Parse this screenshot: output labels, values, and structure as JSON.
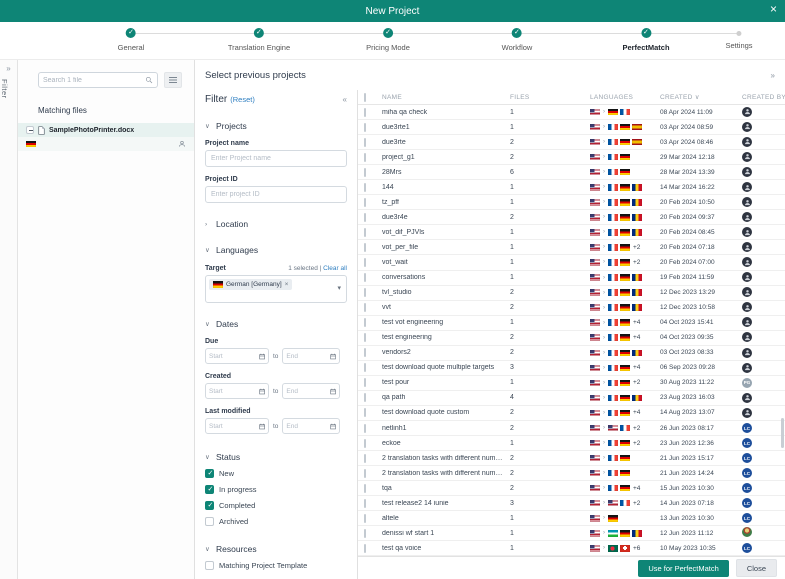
{
  "dialog": {
    "title": "New Project",
    "close_icon": "×"
  },
  "stepper": {
    "steps": [
      {
        "label": "General",
        "state": "done"
      },
      {
        "label": "Translation Engine",
        "state": "done"
      },
      {
        "label": "Pricing Mode",
        "state": "done"
      },
      {
        "label": "Workflow",
        "state": "done"
      },
      {
        "label": "PerfectMatch",
        "state": "current"
      },
      {
        "label": "Settings",
        "state": "upcoming"
      }
    ]
  },
  "filter_rail": {
    "collapse_icon": "»",
    "label": "Filter"
  },
  "files_panel": {
    "search_placeholder": "Search 1 file",
    "heading": "Matching files",
    "file": {
      "name": "SamplePhotoPrinter.docx",
      "language_flag": "de"
    }
  },
  "main": {
    "heading": "Select previous projects",
    "collapse_icon": "»"
  },
  "filter_panel": {
    "title": "Filter",
    "reset_label": "(Reset)",
    "collapse_icon": "«",
    "projects_section": "Projects",
    "project_name_label": "Project name",
    "project_name_placeholder": "Enter Project name",
    "project_id_label": "Project ID",
    "project_id_placeholder": "Enter project ID",
    "location_section": "Location",
    "languages_section": "Languages",
    "target_label": "Target",
    "selected_info": "1 selected",
    "divider": "|",
    "clear_all_label": "Clear all",
    "target_tag": {
      "label": "German [Germany]",
      "flag": "de",
      "remove_icon": "×"
    },
    "dates_section": "Dates",
    "date_fields": [
      "Due",
      "Created",
      "Last modified"
    ],
    "start_placeholder": "Start",
    "end_placeholder": "End",
    "to_label": "to",
    "status_section": "Status",
    "status_options": [
      {
        "label": "New",
        "checked": true
      },
      {
        "label": "In progress",
        "checked": true
      },
      {
        "label": "Completed",
        "checked": true
      },
      {
        "label": "Archived",
        "checked": false
      }
    ],
    "resources_section": "Resources",
    "resources_options": [
      {
        "label": "Matching Project Template",
        "checked": false
      }
    ]
  },
  "table": {
    "columns": [
      "NAME",
      "FILES",
      "LANGUAGES",
      "CREATED",
      "CREATED BY"
    ],
    "sorted_column": "CREATED",
    "sort_indicator": "∨",
    "rows": [
      {
        "name": "miha qa check",
        "files": "1",
        "source": "us",
        "targets": [
          "de",
          "fr"
        ],
        "extra": "",
        "created": "08 Apr 2024 11:09",
        "avatar": {
          "kind": "photo"
        }
      },
      {
        "name": "due3rte1",
        "files": "1",
        "source": "us",
        "targets": [
          "fr",
          "de",
          "es"
        ],
        "extra": "",
        "created": "03 Apr 2024 08:59",
        "avatar": {
          "kind": "photo"
        }
      },
      {
        "name": "due3rte",
        "files": "2",
        "source": "us",
        "targets": [
          "fr",
          "de",
          "es"
        ],
        "extra": "",
        "created": "03 Apr 2024 08:46",
        "avatar": {
          "kind": "photo"
        }
      },
      {
        "name": "project_g1",
        "files": "2",
        "source": "us",
        "targets": [
          "fr",
          "de"
        ],
        "extra": "",
        "created": "29 Mar 2024 12:18",
        "avatar": {
          "kind": "photo"
        }
      },
      {
        "name": "28Mrs",
        "files": "6",
        "source": "us",
        "targets": [
          "fr",
          "de"
        ],
        "extra": "",
        "created": "28 Mar 2024 13:39",
        "avatar": {
          "kind": "photo"
        }
      },
      {
        "name": "144",
        "files": "1",
        "source": "us",
        "targets": [
          "fr",
          "de",
          "ro"
        ],
        "extra": "",
        "created": "14 Mar 2024 16:22",
        "avatar": {
          "kind": "photo"
        }
      },
      {
        "name": "tz_pff",
        "files": "1",
        "source": "us",
        "targets": [
          "fr",
          "de",
          "ro"
        ],
        "extra": "",
        "created": "20 Feb 2024 10:50",
        "avatar": {
          "kind": "photo"
        }
      },
      {
        "name": "due3r4e",
        "files": "2",
        "source": "us",
        "targets": [
          "fr",
          "de",
          "ro"
        ],
        "extra": "",
        "created": "20 Feb 2024 09:37",
        "avatar": {
          "kind": "photo"
        }
      },
      {
        "name": "vot_dif_PJVls",
        "files": "1",
        "source": "us",
        "targets": [
          "fr",
          "de",
          "ro"
        ],
        "extra": "",
        "created": "20 Feb 2024 08:45",
        "avatar": {
          "kind": "photo"
        }
      },
      {
        "name": "vot_per_file",
        "files": "1",
        "source": "us",
        "targets": [
          "fr",
          "de"
        ],
        "extra": "+2",
        "created": "20 Feb 2024 07:18",
        "avatar": {
          "kind": "photo"
        }
      },
      {
        "name": "vot_wait",
        "files": "1",
        "source": "us",
        "targets": [
          "fr",
          "de"
        ],
        "extra": "+2",
        "created": "20 Feb 2024 07:00",
        "avatar": {
          "kind": "photo"
        }
      },
      {
        "name": "conversations",
        "files": "1",
        "source": "us",
        "targets": [
          "fr",
          "de",
          "ro"
        ],
        "extra": "",
        "created": "19 Feb 2024 11:59",
        "avatar": {
          "kind": "photo"
        }
      },
      {
        "name": "tvl_studio",
        "files": "2",
        "source": "us",
        "targets": [
          "fr",
          "de",
          "ro"
        ],
        "extra": "",
        "created": "12 Dec 2023 13:29",
        "avatar": {
          "kind": "photo"
        }
      },
      {
        "name": "vvt",
        "files": "2",
        "source": "us",
        "targets": [
          "fr",
          "de",
          "ro"
        ],
        "extra": "",
        "created": "12 Dec 2023 10:58",
        "avatar": {
          "kind": "photo"
        }
      },
      {
        "name": "test vot engineering",
        "files": "1",
        "source": "us",
        "targets": [
          "fr",
          "de"
        ],
        "extra": "+4",
        "created": "04 Oct 2023 15:41",
        "avatar": {
          "kind": "photo"
        }
      },
      {
        "name": "test engineering",
        "files": "2",
        "source": "us",
        "targets": [
          "fr",
          "de"
        ],
        "extra": "+4",
        "created": "04 Oct 2023 09:35",
        "avatar": {
          "kind": "photo"
        }
      },
      {
        "name": "vendors2",
        "files": "2",
        "source": "us",
        "targets": [
          "fr",
          "de",
          "ro"
        ],
        "extra": "",
        "created": "03 Oct 2023 08:33",
        "avatar": {
          "kind": "photo"
        }
      },
      {
        "name": "test download quote multiple targets",
        "files": "3",
        "source": "us",
        "targets": [
          "fr",
          "de"
        ],
        "extra": "+4",
        "created": "06 Sep 2023 09:28",
        "avatar": {
          "kind": "photo"
        }
      },
      {
        "name": "test pour",
        "files": "1",
        "source": "us",
        "targets": [
          "fr",
          "de"
        ],
        "extra": "+2",
        "created": "30 Aug 2023 11:22",
        "avatar": {
          "kind": "initials",
          "text": "PG",
          "color": "#97a5b1"
        }
      },
      {
        "name": "qa path",
        "files": "4",
        "source": "us",
        "targets": [
          "fr",
          "de",
          "ro"
        ],
        "extra": "",
        "created": "23 Aug 2023 16:03",
        "avatar": {
          "kind": "photo"
        }
      },
      {
        "name": "test download quote custom",
        "files": "2",
        "source": "us",
        "targets": [
          "fr",
          "de"
        ],
        "extra": "+4",
        "created": "14 Aug 2023 13:07",
        "avatar": {
          "kind": "photo"
        }
      },
      {
        "name": "netlinh1",
        "files": "2",
        "source": "us",
        "targets": [
          "us",
          "fr"
        ],
        "extra": "+2",
        "created": "26 Jun 2023 08:17",
        "avatar": {
          "kind": "initials",
          "text": "LC",
          "color": "#1d4e9b"
        }
      },
      {
        "name": "eckoe",
        "files": "1",
        "source": "us",
        "targets": [
          "fr",
          "de"
        ],
        "extra": "+2",
        "created": "23 Jun 2023 12:36",
        "avatar": {
          "kind": "initials",
          "text": "LC",
          "color": "#1d4e9b"
        }
      },
      {
        "name": "2 translation tasks with different number of outso...",
        "files": "2",
        "source": "us",
        "targets": [
          "fr",
          "de"
        ],
        "extra": "",
        "created": "21 Jun 2023 15:17",
        "avatar": {
          "kind": "initials",
          "text": "LC",
          "color": "#1d4e9b"
        }
      },
      {
        "name": "2 translation tasks with different number of outso...",
        "files": "2",
        "source": "us",
        "targets": [
          "fr",
          "de"
        ],
        "extra": "",
        "created": "21 Jun 2023 14:24",
        "avatar": {
          "kind": "initials",
          "text": "LC",
          "color": "#1d4e9b"
        }
      },
      {
        "name": "tqa",
        "files": "2",
        "source": "us",
        "targets": [
          "fr",
          "de"
        ],
        "extra": "+4",
        "created": "15 Jun 2023 10:30",
        "avatar": {
          "kind": "initials",
          "text": "LC",
          "color": "#1d4e9b"
        }
      },
      {
        "name": "test release2 14 iunie",
        "files": "3",
        "source": "us",
        "targets": [
          "us",
          "fr"
        ],
        "extra": "+2",
        "created": "14 Jun 2023 07:18",
        "avatar": {
          "kind": "initials",
          "text": "LC",
          "color": "#1d4e9b"
        }
      },
      {
        "name": "altele",
        "files": "1",
        "source": "us",
        "targets": [
          "de"
        ],
        "extra": "",
        "created": "13 Jun 2023 10:30",
        "avatar": {
          "kind": "initials",
          "text": "LC",
          "color": "#1d4e9b"
        }
      },
      {
        "name": "denissi wf start 1",
        "files": "1",
        "source": "us",
        "targets": [
          "uz",
          "de",
          "ro"
        ],
        "extra": "",
        "created": "12 Jun 2023 11:12",
        "avatar": {
          "kind": "photo",
          "tone": "color"
        }
      },
      {
        "name": "test qa voice",
        "files": "1",
        "source": "us",
        "targets": [
          "bd",
          "ch"
        ],
        "extra": "+6",
        "created": "10 May 2023 10:35",
        "avatar": {
          "kind": "initials",
          "text": "LC",
          "color": "#1d4e9b"
        }
      }
    ]
  },
  "footer": {
    "primary_label": "Use for PerfectMatch",
    "close_label": "Close"
  },
  "colors": {
    "teal": "#0E8576",
    "link_blue": "#2F7FC1",
    "avatar_navy": "#1D4E9B",
    "selected_row_bg": "#E7F2F0"
  }
}
